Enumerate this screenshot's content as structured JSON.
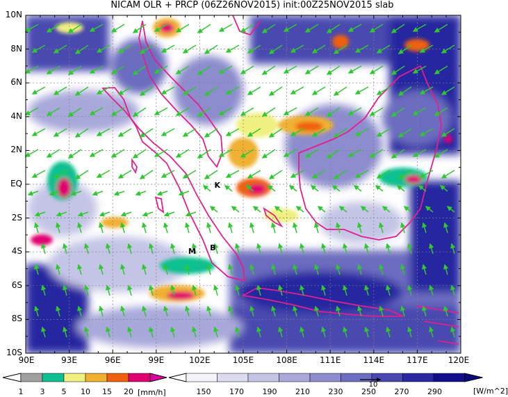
{
  "title": "NICAM OLR + PRCP (06Z26NOV2015) init:00Z25NOV2015 slab",
  "map": {
    "lat_labels": [
      "10N",
      "8N",
      "6N",
      "4N",
      "2N",
      "EQ",
      "2S",
      "4S",
      "6S",
      "8S",
      "10S"
    ],
    "lon_labels": [
      "90E",
      "93E",
      "96E",
      "99E",
      "102E",
      "105E",
      "108E",
      "111E",
      "114E",
      "117E",
      "120E"
    ],
    "site_labels": [
      {
        "text": "K",
        "lon": 103.2,
        "lat": -0.1
      },
      {
        "text": "M",
        "lon": 101.4,
        "lat": -4.0
      },
      {
        "text": "B",
        "lon": 102.9,
        "lat": -3.8
      }
    ]
  },
  "precip_colorbar": {
    "levels": [
      "1",
      "3",
      "5",
      "10",
      "15",
      "20"
    ],
    "unit": "[mm/h]",
    "colors": [
      "#a0a0a0",
      "#10c090",
      "#f0f080",
      "#f0b030",
      "#f06010",
      "#e00070"
    ]
  },
  "olr_colorbar": {
    "levels": [
      "150",
      "170",
      "190",
      "210",
      "230",
      "250",
      "270",
      "290"
    ],
    "unit": "[W/m^2]",
    "colors": [
      "#f4f4fc",
      "#dcdcf0",
      "#c4c4e6",
      "#a8a8da",
      "#8c8cce",
      "#6c6cc0",
      "#4848b0",
      "#2828a0",
      "#10108c"
    ]
  },
  "wind_vector_label": "10",
  "colors": {
    "coastline": "#e0208c",
    "wind_vector": "#30c830",
    "gridline": "#808080"
  }
}
